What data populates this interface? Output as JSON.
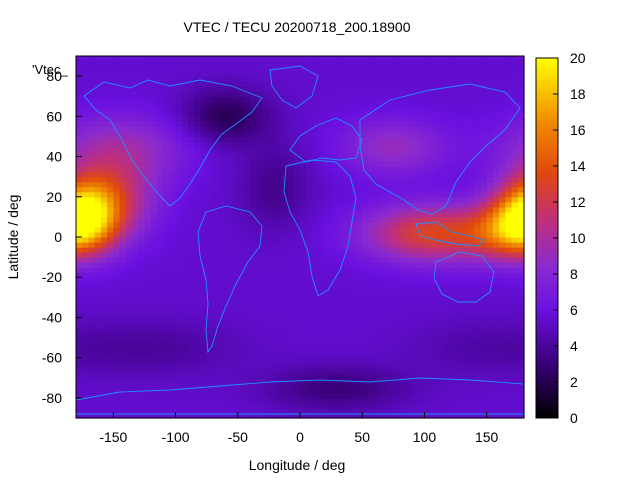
{
  "chart_data": {
    "type": "heatmap",
    "title": "VTEC / TECU 20200718_200.18900",
    "xlabel": "Longitude / deg",
    "ylabel": "Latitude / deg",
    "key_label": "'Vtec_",
    "xlim": [
      -180,
      180
    ],
    "ylim": [
      -90,
      90
    ],
    "x_ticks": [
      -150,
      -100,
      -50,
      0,
      50,
      100,
      150
    ],
    "y_ticks": [
      -80,
      -60,
      -40,
      -20,
      0,
      20,
      40,
      60,
      80
    ],
    "colorbar": {
      "range": [
        0,
        20
      ],
      "ticks": [
        0,
        2,
        4,
        6,
        8,
        10,
        12,
        14,
        16,
        18,
        20
      ],
      "palette": "black-purple-red-orange-yellow"
    },
    "grid": false,
    "features": [
      {
        "lon": 105,
        "lat": 2,
        "sigma_lon": 38,
        "sigma_lat": 10,
        "peak": 7.5
      },
      {
        "lon": 170,
        "lat": 3,
        "sigma_lon": 25,
        "sigma_lat": 10,
        "peak": 6.5
      },
      {
        "lon": -175,
        "lat": 12,
        "sigma_lon": 20,
        "sigma_lat": 12,
        "peak": 11.5
      },
      {
        "lon": -150,
        "lat": 20,
        "sigma_lon": 25,
        "sigma_lat": 14,
        "peak": 5.0
      },
      {
        "lon": -145,
        "lat": 45,
        "sigma_lon": 40,
        "sigma_lat": 12,
        "peak": 3.5
      },
      {
        "lon": 75,
        "lat": 45,
        "sigma_lon": 30,
        "sigma_lat": 10,
        "peak": 3.5
      },
      {
        "lon": -60,
        "lat": 60,
        "sigma_lon": 25,
        "sigma_lat": 10,
        "peak": -3.5
      },
      {
        "lon": -20,
        "lat": 25,
        "sigma_lon": 20,
        "sigma_lat": 15,
        "peak": -2.0
      },
      {
        "lon": 30,
        "lat": -75,
        "sigma_lon": 40,
        "sigma_lat": 8,
        "peak": -2.5
      },
      {
        "lon": -120,
        "lat": -55,
        "sigma_lon": 50,
        "sigma_lat": 10,
        "peak": -1.5
      },
      {
        "lon": 140,
        "lat": -55,
        "sigma_lon": 40,
        "sigma_lat": 10,
        "peak": -1.0
      }
    ],
    "baseline": 5.5
  },
  "colors": {
    "coastline": "#1e90ff",
    "axis": "#000000"
  }
}
